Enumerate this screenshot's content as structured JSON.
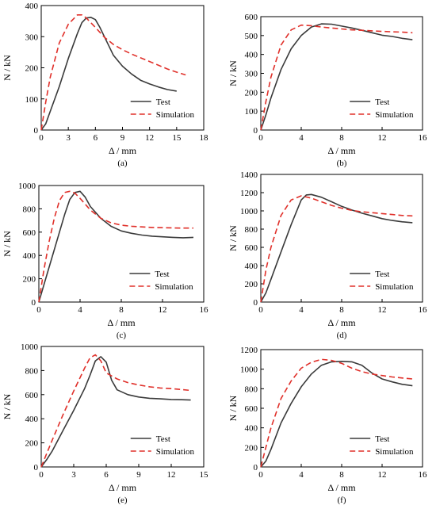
{
  "figure": {
    "colors": {
      "test": "#3a3a3a",
      "simulation": "#e0302a",
      "axis": "#000000"
    },
    "legend": {
      "placement": "lower-right"
    }
  },
  "chart_data": [
    {
      "type": "line",
      "panel_label": "(a)",
      "xlabel": "Δ / mm",
      "ylabel": "N / kN",
      "xlim": [
        0,
        18
      ],
      "ylim": [
        0,
        400
      ],
      "xticks": [
        0,
        3,
        6,
        9,
        12,
        15,
        18
      ],
      "yticks": [
        0,
        100,
        200,
        300,
        400
      ],
      "series": [
        {
          "name": "Test",
          "style": "solid",
          "x": [
            0,
            0.5,
            1,
            2,
            3,
            4,
            4.5,
            5,
            5.5,
            6,
            6.5,
            7,
            8,
            9,
            10,
            11,
            12,
            13,
            14,
            15
          ],
          "y": [
            0,
            20,
            60,
            140,
            230,
            310,
            345,
            360,
            362,
            355,
            330,
            300,
            240,
            205,
            180,
            160,
            148,
            138,
            130,
            125
          ]
        },
        {
          "name": "Simulation",
          "style": "dashed",
          "x": [
            0,
            0.5,
            1,
            2,
            3,
            4,
            4.5,
            5,
            6,
            7,
            8,
            9,
            10,
            11,
            12,
            13,
            14,
            15,
            16
          ],
          "y": [
            0,
            90,
            170,
            280,
            340,
            370,
            370,
            360,
            330,
            298,
            275,
            258,
            244,
            232,
            220,
            208,
            196,
            186,
            177
          ]
        }
      ]
    },
    {
      "type": "line",
      "panel_label": "(b)",
      "xlabel": "Δ / mm",
      "ylabel": "N / kN",
      "xlim": [
        0,
        16
      ],
      "ylim": [
        0,
        600
      ],
      "xticks": [
        0,
        4,
        8,
        12,
        16
      ],
      "yticks": [
        0,
        100,
        200,
        300,
        400,
        500,
        600
      ],
      "series": [
        {
          "name": "Test",
          "style": "solid",
          "x": [
            0,
            0.5,
            1,
            2,
            3,
            4,
            5,
            6,
            7,
            8,
            9,
            10,
            11,
            12,
            13,
            14,
            15
          ],
          "y": [
            0,
            80,
            170,
            320,
            430,
            500,
            545,
            562,
            560,
            550,
            540,
            528,
            515,
            502,
            495,
            485,
            478
          ]
        },
        {
          "name": "Simulation",
          "style": "dashed",
          "x": [
            0,
            0.5,
            1,
            2,
            3,
            4,
            5,
            6,
            7,
            8,
            9,
            10,
            11,
            12,
            13,
            14,
            15
          ],
          "y": [
            0,
            150,
            280,
            450,
            530,
            555,
            552,
            545,
            540,
            535,
            530,
            528,
            525,
            522,
            520,
            518,
            515
          ]
        }
      ]
    },
    {
      "type": "line",
      "panel_label": "(c)",
      "xlabel": "Δ / mm",
      "ylabel": "N / kN",
      "xlim": [
        0,
        16
      ],
      "ylim": [
        0,
        1000
      ],
      "xticks": [
        0,
        4,
        8,
        12,
        16
      ],
      "yticks": [
        0,
        200,
        400,
        600,
        800,
        1000
      ],
      "series": [
        {
          "name": "Test",
          "style": "solid",
          "x": [
            0,
            0.5,
            1,
            1.5,
            2,
            2.5,
            3,
            3.5,
            4,
            4.5,
            5,
            6,
            7,
            8,
            9,
            10,
            11,
            12,
            13,
            14,
            15
          ],
          "y": [
            0,
            150,
            300,
            450,
            600,
            750,
            880,
            940,
            950,
            900,
            820,
            720,
            650,
            610,
            590,
            575,
            565,
            560,
            555,
            552,
            555
          ]
        },
        {
          "name": "Simulation",
          "style": "dashed",
          "x": [
            0,
            0.5,
            1,
            1.5,
            2,
            2.5,
            3,
            3.5,
            4,
            5,
            6,
            7,
            8,
            9,
            10,
            11,
            12,
            13,
            14,
            15
          ],
          "y": [
            0,
            280,
            520,
            720,
            870,
            940,
            950,
            935,
            890,
            790,
            720,
            680,
            660,
            650,
            645,
            640,
            638,
            636,
            635,
            635
          ]
        }
      ]
    },
    {
      "type": "line",
      "panel_label": "(d)",
      "xlabel": "Δ / mm",
      "ylabel": "N / kN",
      "xlim": [
        0,
        16
      ],
      "ylim": [
        0,
        1400
      ],
      "xticks": [
        0,
        4,
        8,
        12,
        16
      ],
      "yticks": [
        0,
        200,
        400,
        600,
        800,
        1000,
        1200,
        1400
      ],
      "series": [
        {
          "name": "Test",
          "style": "solid",
          "x": [
            0,
            0.5,
            1,
            2,
            3,
            4,
            4.5,
            5,
            6,
            7,
            8,
            9,
            10,
            11,
            12,
            13,
            14,
            15
          ],
          "y": [
            0,
            100,
            250,
            550,
            850,
            1120,
            1175,
            1180,
            1150,
            1100,
            1050,
            1010,
            975,
            945,
            915,
            895,
            880,
            870
          ]
        },
        {
          "name": "Simulation",
          "style": "dashed",
          "x": [
            0,
            0.5,
            1,
            2,
            3,
            4,
            5,
            6,
            7,
            8,
            9,
            10,
            11,
            12,
            13,
            14,
            15
          ],
          "y": [
            0,
            350,
            600,
            950,
            1120,
            1165,
            1140,
            1100,
            1060,
            1030,
            1005,
            990,
            980,
            970,
            960,
            950,
            945
          ]
        }
      ]
    },
    {
      "type": "line",
      "panel_label": "(e)",
      "xlabel": "Δ / mm",
      "ylabel": "N / kN",
      "xlim": [
        0,
        15
      ],
      "ylim": [
        0,
        1000
      ],
      "xticks": [
        0,
        3,
        6,
        9,
        12,
        15
      ],
      "yticks": [
        0,
        200,
        400,
        600,
        800,
        1000
      ],
      "series": [
        {
          "name": "Test",
          "style": "solid",
          "x": [
            0,
            0.5,
            1,
            2,
            3,
            4,
            4.5,
            5,
            5.5,
            6,
            6.5,
            7,
            8,
            9,
            10,
            11,
            12,
            13,
            13.8
          ],
          "y": [
            0,
            60,
            130,
            300,
            470,
            650,
            760,
            880,
            915,
            870,
            720,
            640,
            600,
            580,
            570,
            565,
            560,
            558,
            555
          ]
        },
        {
          "name": "Simulation",
          "style": "dashed",
          "x": [
            0,
            0.5,
            1,
            2,
            3,
            4,
            4.5,
            5,
            5.5,
            6,
            7,
            8,
            9,
            10,
            11,
            12,
            13,
            13.8
          ],
          "y": [
            0,
            110,
            220,
            430,
            630,
            820,
            905,
            930,
            880,
            780,
            730,
            700,
            680,
            665,
            655,
            650,
            642,
            635
          ]
        }
      ]
    },
    {
      "type": "line",
      "panel_label": "(f)",
      "xlabel": "Δ / mm",
      "ylabel": "N / kN",
      "xlim": [
        0,
        16
      ],
      "ylim": [
        0,
        1200
      ],
      "xticks": [
        0,
        4,
        8,
        12,
        16
      ],
      "yticks": [
        0,
        200,
        400,
        600,
        800,
        1000,
        1200
      ],
      "series": [
        {
          "name": "Test",
          "style": "solid",
          "x": [
            0,
            0.5,
            1,
            2,
            3,
            4,
            5,
            6,
            7,
            8,
            9,
            10,
            11,
            12,
            13,
            14,
            15
          ],
          "y": [
            0,
            60,
            180,
            450,
            650,
            820,
            950,
            1040,
            1075,
            1080,
            1075,
            1040,
            960,
            900,
            870,
            845,
            830
          ]
        },
        {
          "name": "Simulation",
          "style": "dashed",
          "x": [
            0,
            0.5,
            1,
            2,
            3,
            4,
            5,
            6,
            7,
            8,
            9,
            10,
            11,
            12,
            13,
            14,
            15
          ],
          "y": [
            0,
            200,
            400,
            700,
            880,
            1010,
            1070,
            1100,
            1090,
            1060,
            1010,
            975,
            950,
            935,
            920,
            910,
            900
          ]
        }
      ]
    }
  ]
}
